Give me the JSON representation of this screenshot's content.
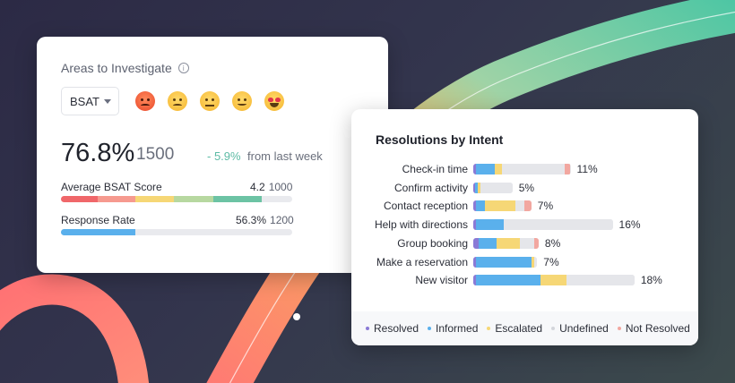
{
  "colors": {
    "resolved": "#8a7ad6",
    "informed": "#5ab0ec",
    "escalated": "#f6d776",
    "undefined": "#e5e6ea",
    "not_resolved": "#f2a7a0",
    "delta": "#5dbba5"
  },
  "areas": {
    "title": "Areas to Investigate",
    "info_icon": "info-icon",
    "filter_value": "BSAT",
    "emojis": [
      "angry-face-icon",
      "sad-face-icon",
      "neutral-face-icon",
      "slight-smile-icon",
      "heart-eyes-icon"
    ],
    "score": "76.8%",
    "count": "1500",
    "delta": "- 5.9%",
    "delta_text": "from last week",
    "metrics": [
      {
        "label": "Average BSAT Score",
        "value": "4.2",
        "count": "1000"
      },
      {
        "label": "Response Rate",
        "value": "56.3%",
        "count": "1200",
        "fill": 0.32
      }
    ]
  },
  "resolutions": {
    "title": "Resolutions by Intent",
    "rows": [
      {
        "label": "Check-in time",
        "pct": "11%",
        "total": 0.67,
        "segments": [
          [
            "resolved",
            0.02
          ],
          [
            "informed",
            0.13
          ],
          [
            "escalated",
            0.05
          ],
          [
            "undefined",
            0.43
          ],
          [
            "not_resolved",
            0.04
          ]
        ]
      },
      {
        "label": "Confirm activity",
        "pct": "5%",
        "total": 0.27,
        "segments": [
          [
            "resolved",
            0.015
          ],
          [
            "informed",
            0.015
          ],
          [
            "escalated",
            0.02
          ],
          [
            "undefined",
            0.22
          ]
        ]
      },
      {
        "label": "Contact reception",
        "pct": "7%",
        "total": 0.4,
        "segments": [
          [
            "resolved",
            0.02
          ],
          [
            "informed",
            0.06
          ],
          [
            "escalated",
            0.21
          ],
          [
            "undefined",
            0.06
          ],
          [
            "not_resolved",
            0.05
          ]
        ]
      },
      {
        "label": "Help with directions",
        "pct": "16%",
        "total": 0.96,
        "segments": [
          [
            "resolved",
            0.02
          ],
          [
            "informed",
            0.19
          ],
          [
            "undefined",
            0.75
          ]
        ]
      },
      {
        "label": "Group booking",
        "pct": "8%",
        "total": 0.45,
        "segments": [
          [
            "resolved",
            0.04
          ],
          [
            "informed",
            0.12
          ],
          [
            "escalated",
            0.16
          ],
          [
            "undefined",
            0.1
          ],
          [
            "not_resolved",
            0.03
          ]
        ]
      },
      {
        "label": "Make a reservation",
        "pct": "7%",
        "total": 0.44,
        "segments": [
          [
            "resolved",
            0.02
          ],
          [
            "informed",
            0.38
          ],
          [
            "escalated",
            0.02
          ],
          [
            "undefined",
            0.02
          ]
        ]
      },
      {
        "label": "New visitor",
        "pct": "18%",
        "total": 1.11,
        "segments": [
          [
            "resolved",
            0.02
          ],
          [
            "informed",
            0.44
          ],
          [
            "escalated",
            0.18
          ],
          [
            "undefined",
            0.47
          ]
        ]
      }
    ],
    "legend": [
      {
        "key": "resolved",
        "label": "Resolved"
      },
      {
        "key": "informed",
        "label": "Informed"
      },
      {
        "key": "escalated",
        "label": "Escalated"
      },
      {
        "key": "undefined",
        "label": "Undefined"
      },
      {
        "key": "not_resolved",
        "label": "Not Resolved"
      }
    ]
  }
}
